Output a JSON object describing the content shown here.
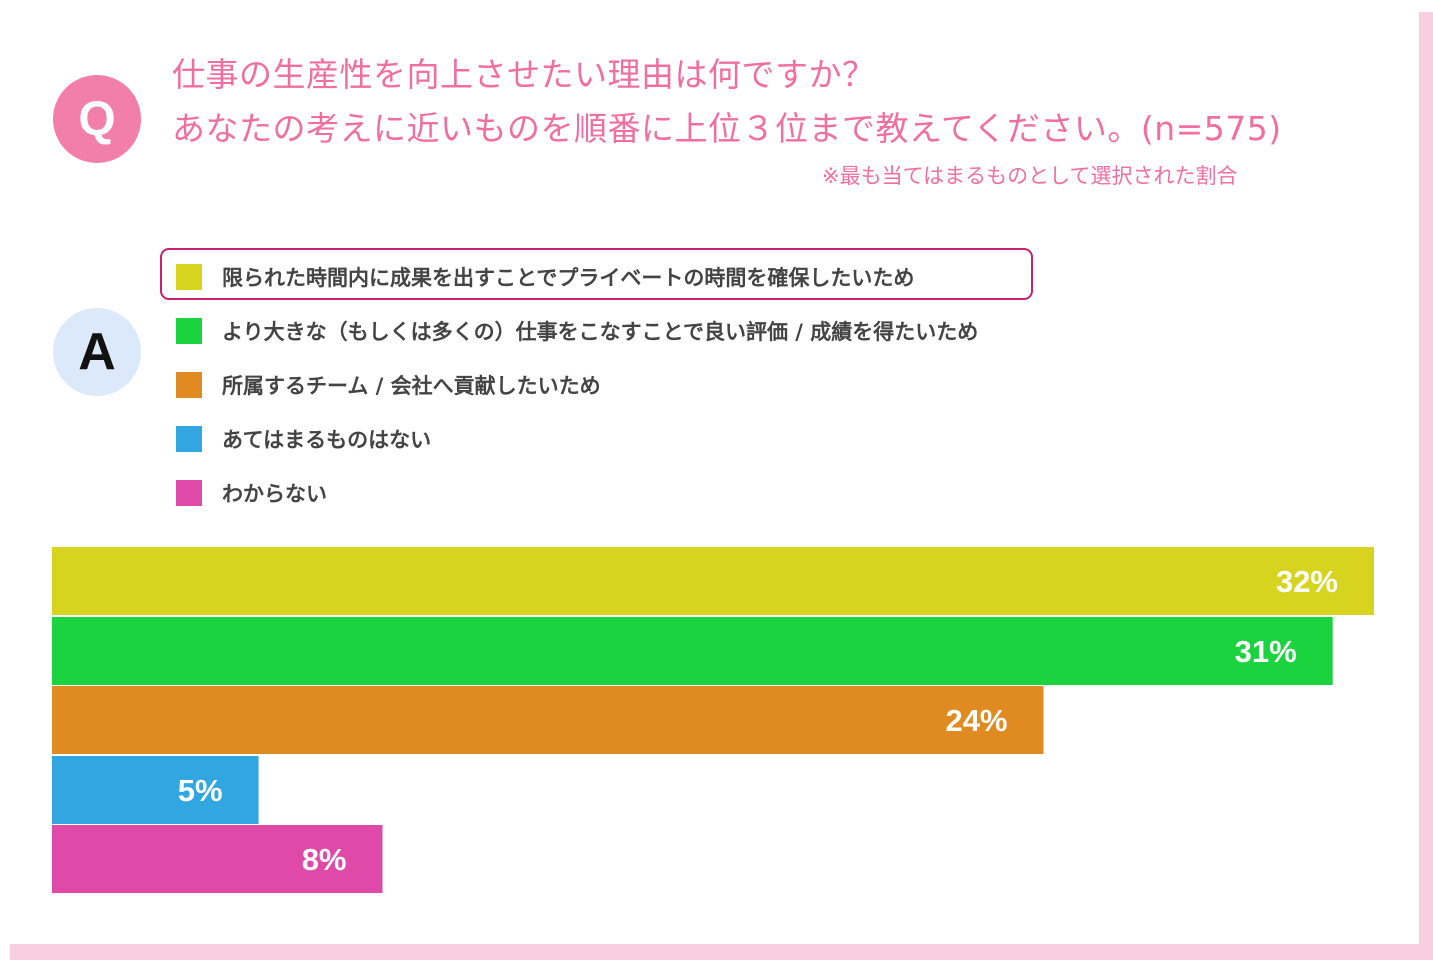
{
  "question": {
    "badge": "Q",
    "line1": "仕事の生産性を向上させたい理由は何ですか？",
    "line2": "あなたの考えに近いものを順番に上位３位まで教えてください。(n=575)",
    "note": "※最も当てはまるものとして選択された割合"
  },
  "answer": {
    "badge": "A"
  },
  "colors": {
    "question_pink": "#f06fa0",
    "highlight_border": "#c8216f",
    "frame": "#f9cfe0"
  },
  "chart_data": {
    "type": "bar",
    "orientation": "horizontal",
    "highlighted_category": 0,
    "categories": [
      "限られた時間内に成果を出すことでプライベートの時間を確保したいため",
      "より大きな（もしくは多くの）仕事をこなすことで良い評価 / 成績を得たいため",
      "所属するチーム / 会社へ貢献したいため",
      "あてはまるものはない",
      "わからない"
    ],
    "values": [
      32,
      31,
      24,
      5,
      8
    ],
    "value_labels": [
      "32%",
      "31%",
      "24%",
      "5%",
      "8%"
    ],
    "colors": [
      "#d6d41f",
      "#1bd33e",
      "#e08a22",
      "#32a6e0",
      "#df4aa9"
    ],
    "unit": "%",
    "legend_position": "top",
    "grid": false
  }
}
